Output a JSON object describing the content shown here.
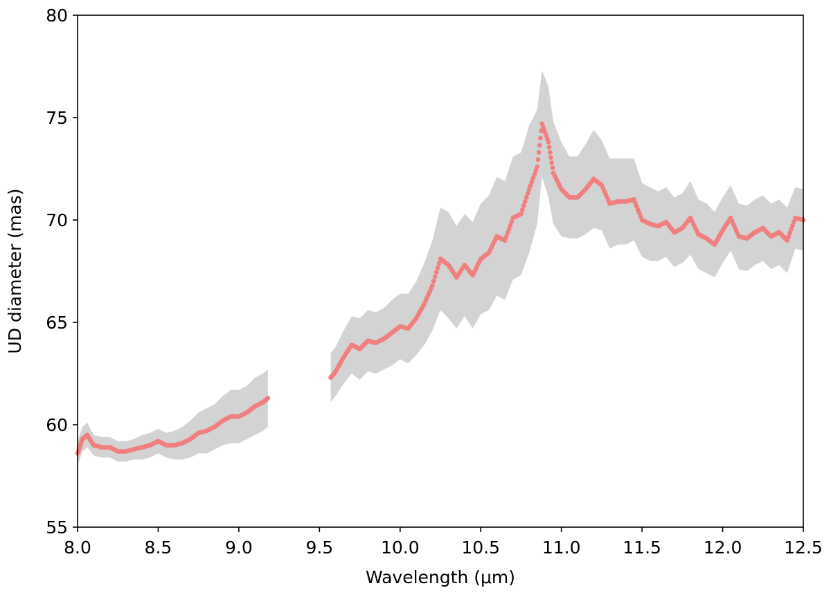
{
  "chart_data": {
    "type": "scatter",
    "title": "",
    "xlabel": "Wavelength (μm)",
    "ylabel": "UD diameter (mas)",
    "xlim": [
      8.0,
      12.5
    ],
    "ylim": [
      55,
      80
    ],
    "xticks": [
      8.0,
      8.5,
      9.0,
      9.5,
      10.0,
      10.5,
      11.0,
      11.5,
      12.0,
      12.5
    ],
    "xtick_labels": [
      "8.0",
      "8.5",
      "9.0",
      "9.5",
      "10.0",
      "10.5",
      "11.0",
      "11.5",
      "12.0",
      "12.5"
    ],
    "yticks": [
      55,
      60,
      65,
      70,
      75,
      80
    ],
    "ytick_labels": [
      "55",
      "60",
      "65",
      "70",
      "75",
      "80"
    ],
    "grid": false,
    "legend": "none",
    "colors": {
      "points": "#f08080",
      "band": "#d3d3d3",
      "axes": "#000000"
    },
    "series": [
      {
        "segment": "short-wavelength",
        "x": [
          8.0,
          8.03,
          8.06,
          8.1,
          8.15,
          8.2,
          8.25,
          8.3,
          8.35,
          8.4,
          8.45,
          8.5,
          8.55,
          8.6,
          8.65,
          8.7,
          8.75,
          8.8,
          8.85,
          8.9,
          8.95,
          9.0,
          9.05,
          9.1,
          9.15,
          9.18
        ],
        "y": [
          58.6,
          59.3,
          59.5,
          59.0,
          58.9,
          58.9,
          58.7,
          58.7,
          58.8,
          58.9,
          59.0,
          59.2,
          59.0,
          59.0,
          59.1,
          59.3,
          59.6,
          59.7,
          59.9,
          60.2,
          60.4,
          60.4,
          60.6,
          60.9,
          61.1,
          61.3
        ],
        "err": [
          0.6,
          0.6,
          0.6,
          0.5,
          0.5,
          0.5,
          0.5,
          0.5,
          0.5,
          0.6,
          0.6,
          0.6,
          0.6,
          0.7,
          0.8,
          0.9,
          1.0,
          1.1,
          1.1,
          1.2,
          1.3,
          1.3,
          1.3,
          1.4,
          1.4,
          1.4
        ]
      },
      {
        "segment": "long-wavelength",
        "x": [
          9.57,
          9.6,
          9.65,
          9.7,
          9.75,
          9.8,
          9.85,
          9.9,
          9.95,
          10.0,
          10.05,
          10.1,
          10.15,
          10.2,
          10.25,
          10.3,
          10.35,
          10.4,
          10.45,
          10.5,
          10.55,
          10.6,
          10.65,
          10.7,
          10.75,
          10.8,
          10.85,
          10.88,
          10.92,
          10.95,
          11.0,
          11.05,
          11.1,
          11.15,
          11.2,
          11.25,
          11.3,
          11.35,
          11.4,
          11.45,
          11.5,
          11.55,
          11.6,
          11.65,
          11.7,
          11.75,
          11.8,
          11.85,
          11.9,
          11.95,
          12.0,
          12.05,
          12.1,
          12.15,
          12.2,
          12.25,
          12.3,
          12.35,
          12.4,
          12.45,
          12.5
        ],
        "y": [
          62.3,
          62.6,
          63.3,
          63.9,
          63.7,
          64.1,
          64.0,
          64.2,
          64.5,
          64.8,
          64.7,
          65.2,
          65.9,
          66.8,
          68.1,
          67.8,
          67.2,
          67.8,
          67.3,
          68.1,
          68.4,
          69.2,
          69.0,
          70.1,
          70.3,
          71.5,
          72.6,
          74.7,
          73.8,
          72.3,
          71.5,
          71.1,
          71.1,
          71.5,
          72.0,
          71.7,
          70.8,
          70.9,
          70.9,
          71.0,
          70.0,
          69.8,
          69.7,
          69.9,
          69.4,
          69.6,
          70.1,
          69.3,
          69.1,
          68.8,
          69.5,
          70.1,
          69.2,
          69.1,
          69.4,
          69.6,
          69.2,
          69.4,
          69.0,
          70.1,
          70.0
        ],
        "err": [
          1.2,
          1.2,
          1.3,
          1.4,
          1.5,
          1.5,
          1.5,
          1.5,
          1.6,
          1.6,
          1.7,
          1.8,
          2.0,
          2.2,
          2.5,
          2.6,
          2.5,
          2.5,
          2.6,
          2.7,
          2.8,
          2.9,
          2.9,
          3.0,
          3.0,
          3.1,
          2.8,
          2.6,
          2.7,
          2.5,
          2.3,
          2.0,
          2.0,
          2.2,
          2.4,
          2.2,
          2.2,
          2.1,
          2.1,
          2.0,
          1.8,
          1.8,
          1.7,
          1.7,
          1.7,
          1.7,
          1.8,
          1.7,
          1.7,
          1.6,
          1.6,
          1.6,
          1.6,
          1.6,
          1.6,
          1.6,
          1.6,
          1.6,
          1.6,
          1.5,
          1.5
        ]
      }
    ]
  }
}
